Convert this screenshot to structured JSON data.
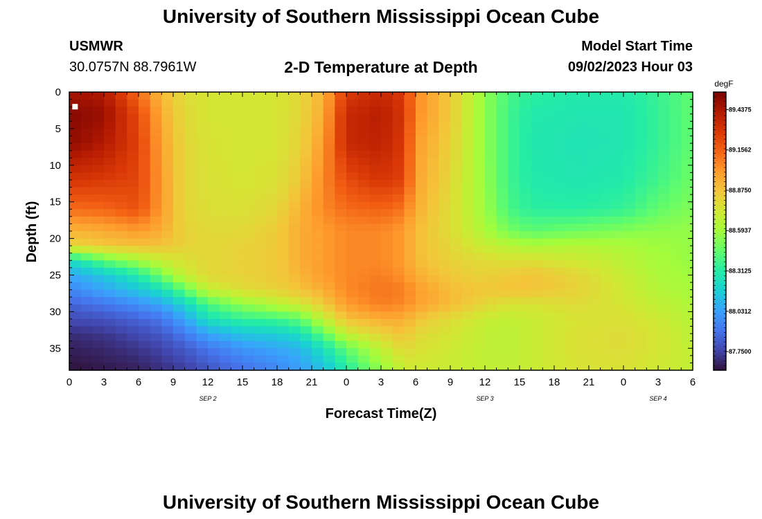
{
  "page": {
    "title_top": "University of Southern Mississippi Ocean Cube",
    "title_bottom": "University of Southern Mississippi Ocean Cube",
    "station_code": "USMWR",
    "coordinates": "30.0757N  88.7961W",
    "subtitle": "2-D Temperature at Depth",
    "model_start_label": "Model Start Time",
    "model_start_value": "09/02/2023 Hour 03"
  },
  "chart_data": {
    "type": "heatmap",
    "xlabel": "Forecast Time(Z)",
    "ylabel": "Depth (ft)",
    "x_range_hours": [
      0,
      54
    ],
    "x_ticks": [
      "0",
      "3",
      "6",
      "9",
      "12",
      "15",
      "18",
      "21",
      "0",
      "3",
      "6",
      "9",
      "12",
      "15",
      "18",
      "21",
      "0",
      "3",
      "6"
    ],
    "date_labels": [
      {
        "text": "SEP 2",
        "hour": 12
      },
      {
        "text": "SEP 3",
        "hour": 36
      },
      {
        "text": "SEP 4",
        "hour": 51
      }
    ],
    "y_range_ft": [
      0,
      38
    ],
    "y_ticks": [
      0,
      5,
      10,
      15,
      20,
      25,
      30,
      35
    ],
    "colorbar": {
      "unit": "degF",
      "min": 87.62,
      "max": 89.56,
      "labels": [
        "89.4375",
        "89.1562",
        "88.8750",
        "88.5937",
        "88.3125",
        "88.0312",
        "87.7500"
      ],
      "colors": [
        "#30123b",
        "#4145ab",
        "#4675ed",
        "#39a2fc",
        "#1bcfd4",
        "#24eca6",
        "#61fc6c",
        "#a4fc3b",
        "#d1e834",
        "#f3c63a",
        "#fe9b2d",
        "#f36315",
        "#d93806",
        "#b11901",
        "#7a0403"
      ]
    },
    "marker": {
      "hour": 0.5,
      "depth_ft": 2
    },
    "z_grid": {
      "x_hours": [
        0,
        3,
        6,
        8,
        10,
        12,
        15,
        18,
        20,
        22,
        24,
        27,
        29,
        30,
        33,
        36,
        38,
        40,
        44,
        48,
        51,
        54
      ],
      "depth_ft": [
        0,
        3,
        7,
        12,
        16,
        19,
        21,
        23,
        25,
        27,
        29,
        31,
        33,
        35,
        38
      ],
      "values_degF": [
        [
          89.45,
          89.42,
          89.12,
          88.9,
          88.78,
          88.74,
          88.74,
          88.74,
          88.8,
          88.93,
          89.27,
          89.35,
          89.27,
          89.05,
          88.85,
          88.55,
          88.4,
          88.33,
          88.3,
          88.3,
          88.36,
          88.45
        ],
        [
          89.53,
          89.48,
          89.22,
          88.95,
          88.79,
          88.74,
          88.74,
          88.74,
          88.8,
          88.95,
          89.35,
          89.4,
          89.3,
          89.05,
          88.85,
          88.55,
          88.38,
          88.3,
          88.28,
          88.28,
          88.35,
          88.45
        ],
        [
          89.5,
          89.42,
          89.25,
          88.98,
          88.8,
          88.75,
          88.74,
          88.74,
          88.82,
          89.0,
          89.35,
          89.38,
          89.28,
          89.0,
          88.83,
          88.55,
          88.38,
          88.29,
          88.27,
          88.28,
          88.35,
          88.45
        ],
        [
          89.3,
          89.28,
          89.24,
          89.0,
          88.8,
          88.76,
          88.74,
          88.76,
          88.86,
          89.05,
          89.22,
          89.3,
          89.25,
          88.98,
          88.8,
          88.56,
          88.38,
          88.3,
          88.28,
          88.3,
          88.38,
          88.48
        ],
        [
          89.12,
          89.14,
          89.2,
          89.0,
          88.8,
          88.77,
          88.76,
          88.8,
          88.93,
          89.05,
          89.12,
          89.15,
          89.1,
          88.95,
          88.78,
          88.58,
          88.4,
          88.33,
          88.32,
          88.35,
          88.45,
          88.52
        ],
        [
          88.92,
          88.95,
          89.0,
          88.95,
          88.82,
          88.79,
          88.79,
          88.85,
          88.95,
          89.0,
          89.05,
          89.05,
          89.0,
          88.9,
          88.78,
          88.62,
          88.5,
          88.44,
          88.48,
          88.52,
          88.55,
          88.56
        ],
        [
          88.82,
          88.86,
          88.88,
          88.87,
          88.82,
          88.8,
          88.82,
          88.85,
          88.95,
          89.0,
          89.05,
          89.05,
          89.0,
          88.9,
          88.8,
          88.7,
          88.65,
          88.62,
          88.64,
          88.62,
          88.58,
          88.56
        ],
        [
          88.22,
          88.45,
          88.6,
          88.7,
          88.76,
          88.8,
          88.82,
          88.85,
          88.95,
          89.0,
          89.05,
          89.05,
          89.0,
          88.9,
          88.82,
          88.78,
          88.76,
          88.76,
          88.72,
          88.66,
          88.6,
          88.56
        ],
        [
          88.05,
          88.15,
          88.3,
          88.5,
          88.7,
          88.8,
          88.82,
          88.85,
          88.92,
          89.0,
          89.05,
          89.08,
          89.02,
          88.95,
          88.85,
          88.82,
          88.85,
          88.88,
          88.8,
          88.7,
          88.62,
          88.58
        ],
        [
          87.95,
          88.05,
          88.15,
          88.25,
          88.45,
          88.68,
          88.78,
          88.82,
          88.88,
          88.95,
          89.05,
          89.1,
          89.08,
          89.0,
          88.9,
          88.86,
          88.88,
          88.88,
          88.82,
          88.72,
          88.64,
          88.6
        ],
        [
          87.85,
          87.9,
          87.98,
          88.05,
          88.2,
          88.4,
          88.55,
          88.65,
          88.72,
          88.85,
          89.0,
          89.08,
          89.05,
          89.0,
          88.9,
          88.8,
          88.75,
          88.75,
          88.78,
          88.74,
          88.68,
          88.62
        ],
        [
          87.78,
          87.8,
          87.85,
          87.9,
          88.05,
          88.25,
          88.35,
          88.38,
          88.45,
          88.68,
          88.88,
          88.95,
          88.95,
          88.88,
          88.78,
          88.7,
          88.68,
          88.7,
          88.75,
          88.76,
          88.72,
          88.64
        ],
        [
          87.7,
          87.72,
          87.78,
          87.82,
          87.92,
          88.05,
          88.15,
          88.18,
          88.25,
          88.45,
          88.7,
          88.82,
          88.88,
          88.8,
          88.74,
          88.68,
          88.66,
          88.7,
          88.76,
          88.78,
          88.74,
          88.66
        ],
        [
          87.66,
          87.68,
          87.72,
          87.76,
          87.82,
          87.9,
          88.0,
          88.05,
          88.1,
          88.25,
          88.45,
          88.68,
          88.8,
          88.76,
          88.72,
          88.68,
          88.66,
          88.7,
          88.76,
          88.78,
          88.74,
          88.68
        ],
        [
          87.62,
          87.64,
          87.66,
          87.7,
          87.74,
          87.8,
          87.88,
          87.95,
          88.02,
          88.12,
          88.3,
          88.55,
          88.7,
          88.72,
          88.7,
          88.68,
          88.68,
          88.7,
          88.75,
          88.76,
          88.72,
          88.68
        ]
      ]
    }
  }
}
